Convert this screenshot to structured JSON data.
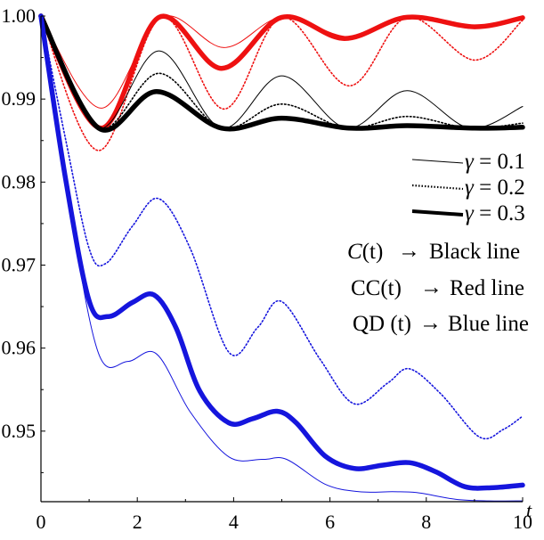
{
  "chart_data": {
    "type": "line",
    "title": "",
    "xlabel": "t",
    "ylabel": "",
    "xlim": [
      0,
      10
    ],
    "ylim": [
      0.9415,
      1.0
    ],
    "x_ticks": [
      0,
      2,
      4,
      6,
      8,
      10
    ],
    "x_tick_labels": [
      "0",
      "2",
      "4",
      "6",
      "8",
      "10"
    ],
    "y_ticks": [
      0.95,
      0.96,
      0.97,
      0.98,
      0.99,
      1.0
    ],
    "y_tick_labels": [
      "0.95",
      "0.96",
      "0.97",
      "0.98",
      "0.99",
      "1.00"
    ],
    "grid": false,
    "legend_position": "right",
    "gamma_legend": [
      {
        "symbol": "γ",
        "text": " = 0.1",
        "style": "thin"
      },
      {
        "symbol": "γ",
        "text": " = 0.2",
        "style": "dotted"
      },
      {
        "symbol": "γ",
        "text": " = 0.3",
        "style": "thick"
      }
    ],
    "quantity_legend": [
      {
        "name": "C",
        "arg": "(t)",
        "arrow": "→",
        "desc": "Black line"
      },
      {
        "name": "CC",
        "arg": "(t)",
        "arrow": "→",
        "desc": "Red line"
      },
      {
        "name": "QD",
        "arg": " (t)",
        "arrow": "→",
        "desc": "Blue line"
      }
    ],
    "colors": {
      "C": "#000000",
      "CC": "#ee1111",
      "QD": "#1515dd"
    },
    "series": [
      {
        "quantity": "CC",
        "gamma": 0.1,
        "style": "thin",
        "x": [
          0,
          1.25,
          2.5,
          3.8,
          5.0,
          6.4,
          7.6,
          9.0,
          10.0
        ],
        "y": [
          1.0,
          0.9889,
          0.99985,
          0.9962,
          0.99985,
          0.9975,
          0.99985,
          0.9985,
          0.99985
        ]
      },
      {
        "quantity": "CC",
        "gamma": 0.2,
        "style": "dotted",
        "x": [
          0,
          1.2,
          2.5,
          3.8,
          5.0,
          6.4,
          7.6,
          9.0,
          10.0
        ],
        "y": [
          1.0,
          0.9838,
          0.99985,
          0.9888,
          0.99985,
          0.9916,
          0.99985,
          0.9947,
          0.9995
        ]
      },
      {
        "quantity": "CC",
        "gamma": 0.3,
        "style": "thick",
        "x": [
          0,
          1.25,
          2.45,
          3.75,
          5.0,
          6.3,
          7.6,
          9.0,
          10.0
        ],
        "y": [
          1.0,
          0.9865,
          0.99985,
          0.9937,
          0.99985,
          0.9973,
          0.99985,
          0.9987,
          0.9998
        ]
      },
      {
        "quantity": "C",
        "gamma": 0.1,
        "style": "thin",
        "x": [
          0,
          1.2,
          2.45,
          3.75,
          5.0,
          6.35,
          7.6,
          8.9,
          10.0
        ],
        "y": [
          1.0,
          0.9865,
          0.9958,
          0.9865,
          0.9928,
          0.9865,
          0.991,
          0.9865,
          0.9891
        ]
      },
      {
        "quantity": "C",
        "gamma": 0.2,
        "style": "dotted",
        "x": [
          0,
          1.2,
          2.45,
          3.75,
          5.0,
          6.35,
          7.6,
          8.9,
          10.0
        ],
        "y": [
          1.0,
          0.9865,
          0.9931,
          0.9865,
          0.9894,
          0.9865,
          0.9879,
          0.9865,
          0.9871
        ]
      },
      {
        "quantity": "C",
        "gamma": 0.3,
        "style": "thick",
        "x": [
          0,
          1.2,
          2.4,
          3.75,
          5.0,
          6.4,
          7.6,
          9.0,
          10.0
        ],
        "y": [
          1.0,
          0.9865,
          0.9909,
          0.9865,
          0.9877,
          0.9865,
          0.9868,
          0.9865,
          0.9866
        ]
      },
      {
        "quantity": "QD",
        "gamma": 0.1,
        "style": "thin",
        "x": [
          0,
          0.6,
          1.2,
          1.8,
          2.4,
          3.1,
          3.9,
          4.6,
          5.1,
          5.9,
          6.6,
          7.3,
          7.8,
          8.6,
          9.3,
          10.0
        ],
        "y": [
          1.0,
          0.9768,
          0.9593,
          0.9584,
          0.9593,
          0.9523,
          0.9469,
          0.9466,
          0.9466,
          0.9436,
          0.9427,
          0.9427,
          0.9426,
          0.9418,
          0.9416,
          0.9416
        ]
      },
      {
        "quantity": "QD",
        "gamma": 0.2,
        "style": "dotted",
        "x": [
          0,
          0.5,
          1.0,
          1.35,
          1.9,
          2.45,
          3.1,
          3.9,
          4.5,
          5.0,
          5.8,
          6.5,
          7.2,
          7.65,
          8.3,
          9.1,
          9.6,
          10.0
        ],
        "y": [
          1.0,
          0.9855,
          0.972,
          0.9702,
          0.9747,
          0.978,
          0.972,
          0.9595,
          0.9625,
          0.9656,
          0.9586,
          0.9533,
          0.9558,
          0.9575,
          0.9545,
          0.9493,
          0.9502,
          0.9518
        ]
      },
      {
        "quantity": "QD",
        "gamma": 0.3,
        "style": "thick",
        "x": [
          0,
          0.5,
          1.0,
          1.4,
          1.9,
          2.35,
          2.8,
          3.3,
          3.9,
          4.4,
          4.9,
          5.3,
          5.9,
          6.5,
          7.1,
          7.65,
          8.2,
          8.8,
          9.4,
          10.0
        ],
        "y": [
          1.0,
          0.9808,
          0.9657,
          0.9638,
          0.9655,
          0.9664,
          0.9625,
          0.9548,
          0.951,
          0.9515,
          0.9524,
          0.951,
          0.947,
          0.9455,
          0.9459,
          0.9462,
          0.9451,
          0.9433,
          0.9432,
          0.9435
        ]
      }
    ]
  }
}
